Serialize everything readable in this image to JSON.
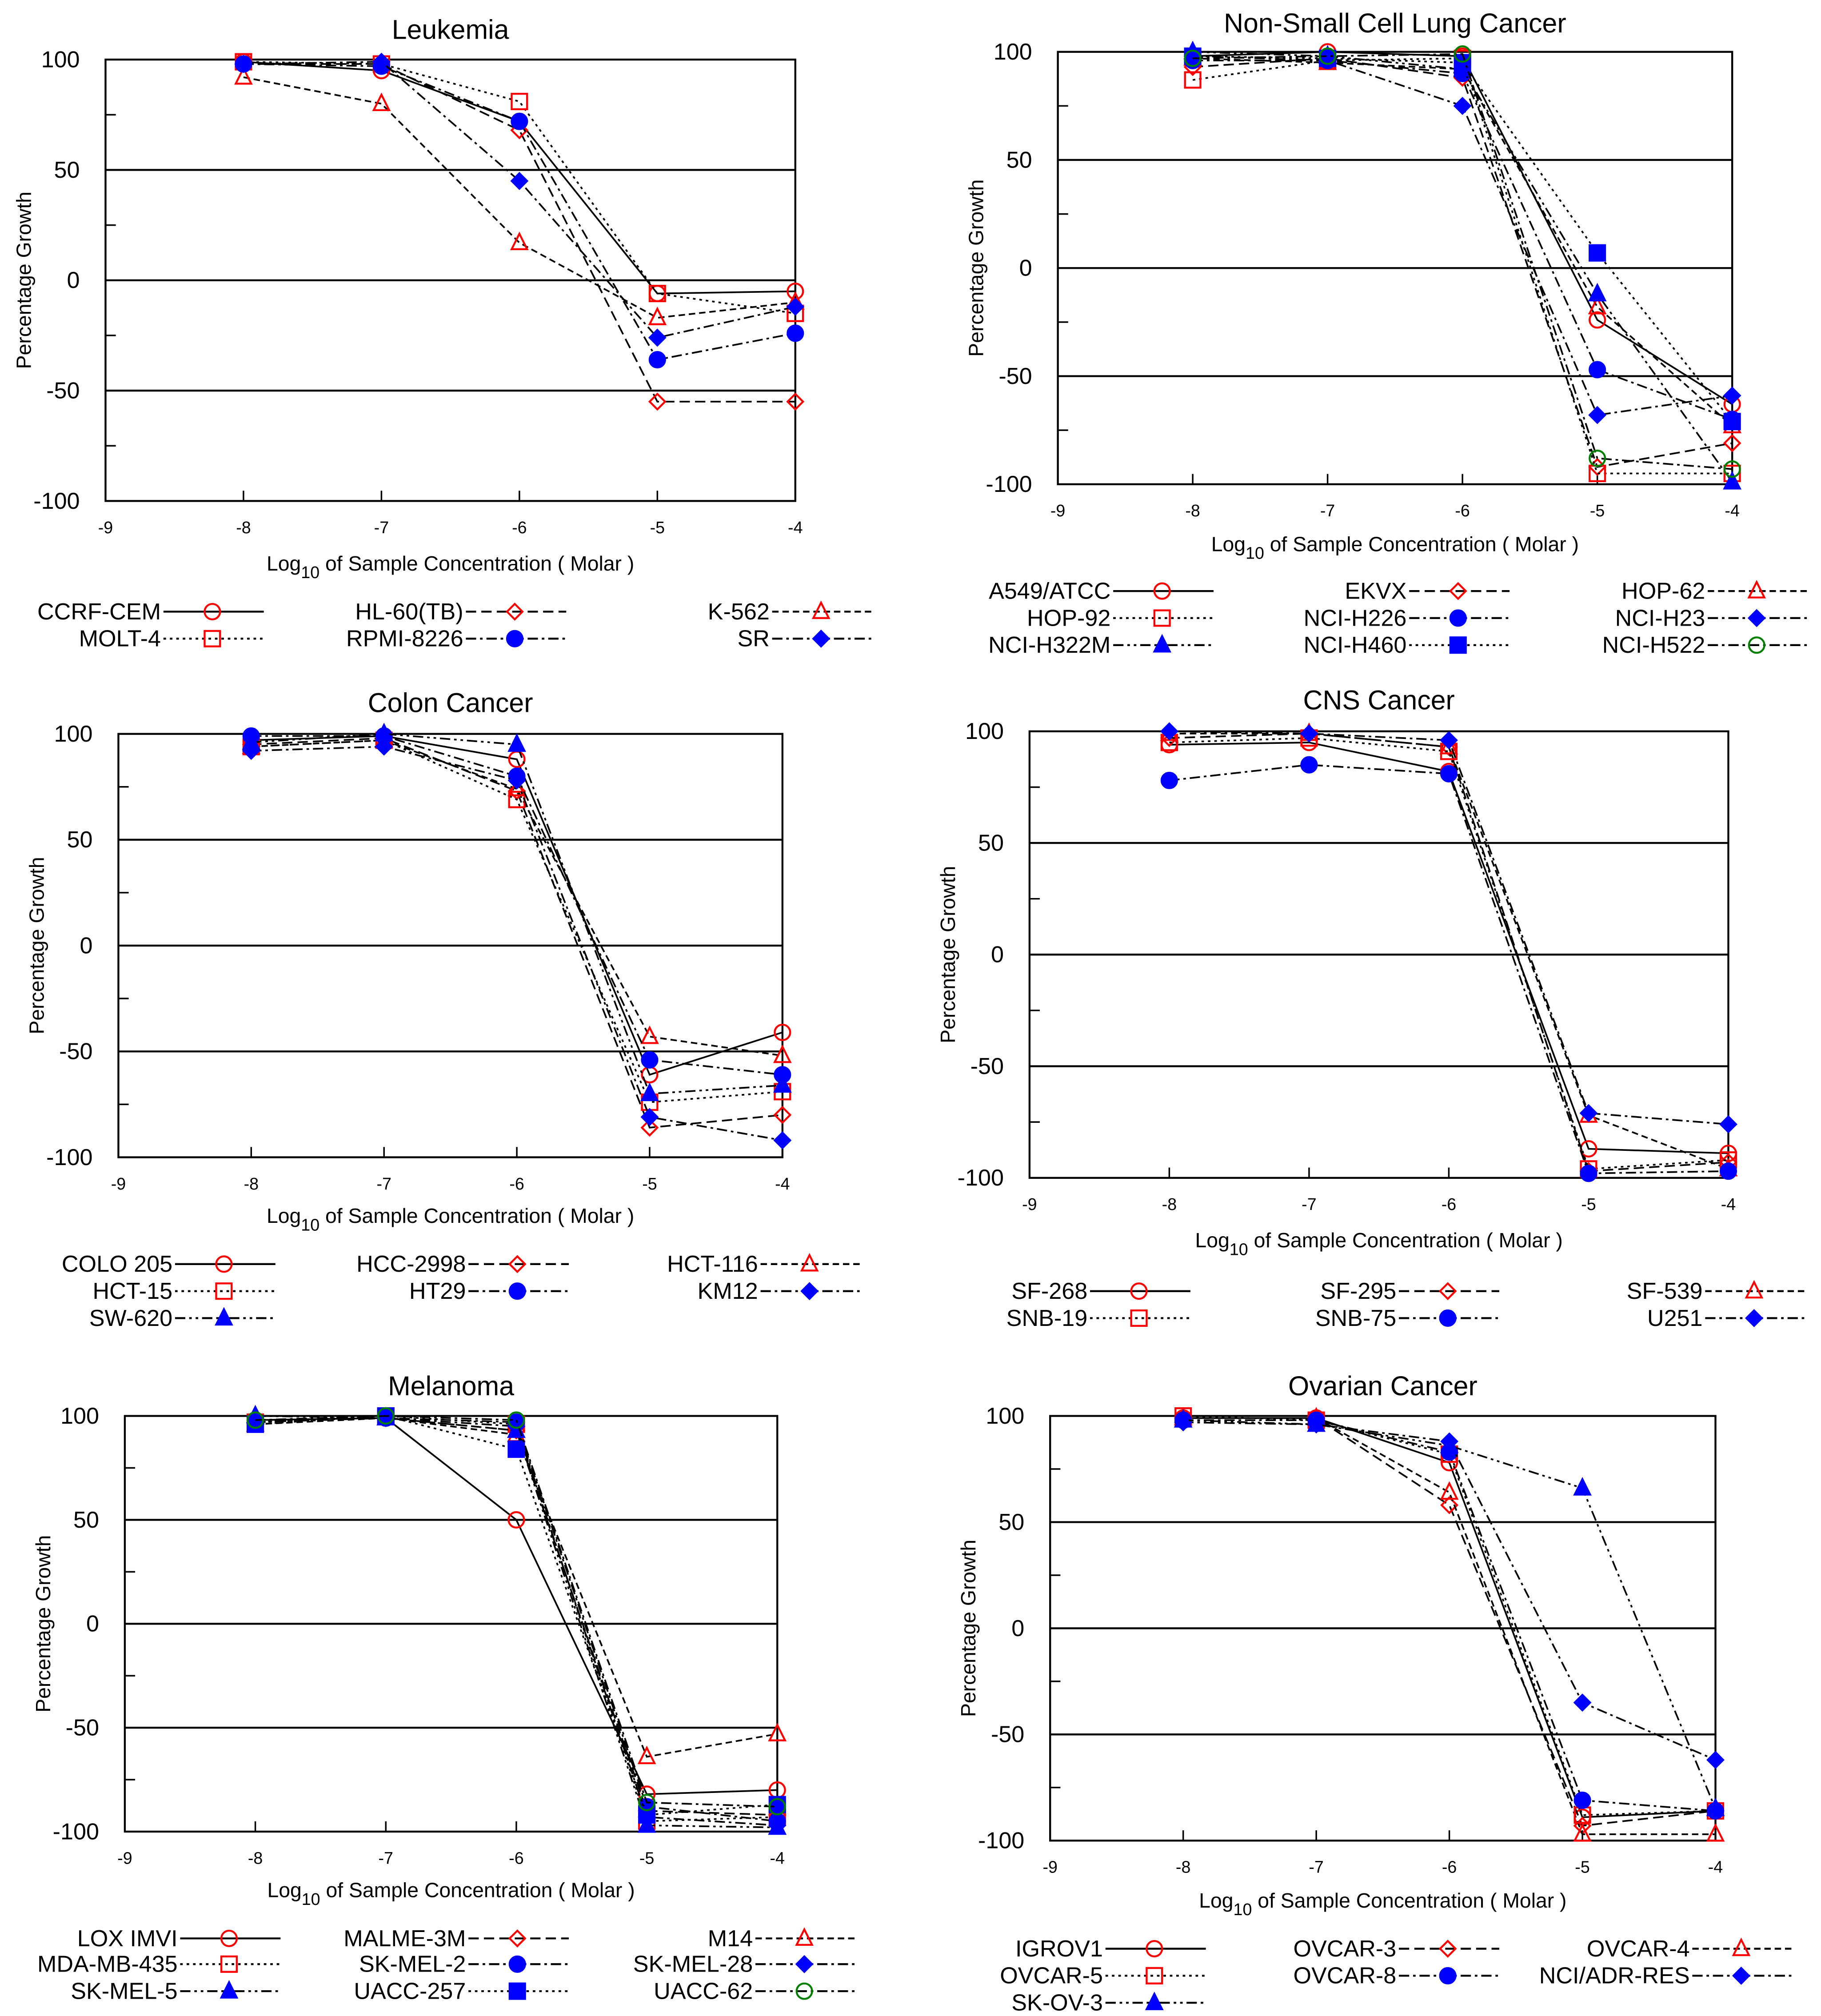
{
  "chart_data": [
    {
      "type": "line",
      "title": "Leukemia",
      "xlabel": "Log10 of Sample Concentration ( Molar )",
      "ylabel": "Percentage Growth",
      "xlim": [
        -9,
        -4
      ],
      "ylim": [
        -100,
        100
      ],
      "xticks": [
        -9,
        -8,
        -7,
        -6,
        -5,
        -4
      ],
      "yticks": [
        100,
        50,
        0,
        -50,
        -100
      ],
      "grid_lines_y": [
        50,
        0,
        -50
      ],
      "x": [
        -8,
        -7,
        -6,
        -5,
        -4
      ],
      "series": [
        {
          "name": "CCRF-CEM",
          "values": [
            99,
            95,
            72,
            -6,
            -5
          ],
          "marker": "circle-open",
          "color": "#ff0000",
          "line": "solid"
        },
        {
          "name": "HL-60(TB)",
          "values": [
            98,
            98,
            68,
            -55,
            -55
          ],
          "marker": "diamond-open",
          "color": "#ff0000",
          "line": "dashed"
        },
        {
          "name": "K-562",
          "values": [
            92,
            80,
            17,
            -17,
            -10
          ],
          "marker": "triangle-open",
          "color": "#ff0000",
          "line": "short-dash"
        },
        {
          "name": "MOLT-4",
          "values": [
            99,
            98,
            81,
            -6,
            -15
          ],
          "marker": "square-open",
          "color": "#ff0000",
          "line": "dotted"
        },
        {
          "name": "RPMI-8226",
          "values": [
            98,
            97,
            72,
            -36,
            -24
          ],
          "marker": "circle-filled",
          "color": "#0000ff",
          "line": "dash-dot"
        },
        {
          "name": "SR",
          "values": [
            98,
            99,
            45,
            -26,
            -12
          ],
          "marker": "diamond-filled",
          "color": "#0000ff",
          "line": "dash-dot"
        }
      ]
    },
    {
      "type": "line",
      "title": "Non-Small Cell Lung Cancer",
      "xlabel": "Log10 of Sample Concentration ( Molar )",
      "ylabel": "Percentage Growth",
      "xlim": [
        -9,
        -4
      ],
      "ylim": [
        -100,
        100
      ],
      "xticks": [
        -9,
        -8,
        -7,
        -6,
        -5,
        -4
      ],
      "yticks": [
        100,
        50,
        0,
        -50,
        -100
      ],
      "grid_lines_y": [
        50,
        0,
        -50
      ],
      "x": [
        -8,
        -7,
        -6,
        -5,
        -4
      ],
      "series": [
        {
          "name": "A549/ATCC",
          "values": [
            98,
            100,
            98,
            -24,
            -63
          ],
          "marker": "circle-open",
          "color": "#ff0000",
          "line": "solid"
        },
        {
          "name": "EKVX",
          "values": [
            93,
            97,
            88,
            -92,
            -81
          ],
          "marker": "diamond-open",
          "color": "#ff0000",
          "line": "dashed"
        },
        {
          "name": "HOP-62",
          "values": [
            97,
            95,
            92,
            -18,
            -73
          ],
          "marker": "triangle-open",
          "color": "#ff0000",
          "line": "short-dash"
        },
        {
          "name": "HOP-92",
          "values": [
            87,
            96,
            97,
            -95,
            -95
          ],
          "marker": "square-open",
          "color": "#ff0000",
          "line": "dotted"
        },
        {
          "name": "NCI-H226",
          "values": [
            96,
            96,
            90,
            -47,
            -70
          ],
          "marker": "circle-filled",
          "color": "#0000ff",
          "line": "dash-dot"
        },
        {
          "name": "NCI-H23",
          "values": [
            98,
            96,
            75,
            -68,
            -59
          ],
          "marker": "diamond-filled",
          "color": "#0000ff",
          "line": "dash-dot"
        },
        {
          "name": "NCI-H322M",
          "values": [
            100,
            98,
            92,
            -12,
            -99
          ],
          "marker": "triangle-filled",
          "color": "#0000ff",
          "line": "dash-dot-dot"
        },
        {
          "name": "NCI-H460",
          "values": [
            98,
            97,
            95,
            7,
            -71
          ],
          "marker": "square-filled",
          "color": "#0000ff",
          "line": "dotted"
        },
        {
          "name": "NCI-H522",
          "values": [
            97,
            98,
            99,
            -88,
            -93
          ],
          "marker": "circle-open",
          "color": "#008000",
          "line": "dash-dot"
        }
      ]
    },
    {
      "type": "line",
      "title": "Colon Cancer",
      "xlabel": "Log10 of Sample Concentration ( Molar )",
      "ylabel": "Percentage Growth",
      "xlim": [
        -9,
        -4
      ],
      "ylim": [
        -100,
        100
      ],
      "xticks": [
        -9,
        -8,
        -7,
        -6,
        -5,
        -4
      ],
      "yticks": [
        100,
        50,
        0,
        -50,
        -100
      ],
      "grid_lines_y": [
        50,
        0,
        -50
      ],
      "x": [
        -8,
        -7,
        -6,
        -5,
        -4
      ],
      "series": [
        {
          "name": "COLO 205",
          "values": [
            97,
            99,
            88,
            -61,
            -41
          ],
          "marker": "circle-open",
          "color": "#ff0000",
          "line": "solid"
        },
        {
          "name": "HCC-2998",
          "values": [
            95,
            98,
            73,
            -86,
            -80
          ],
          "marker": "diamond-open",
          "color": "#ff0000",
          "line": "dashed"
        },
        {
          "name": "HCT-116",
          "values": [
            94,
            97,
            74,
            -43,
            -52
          ],
          "marker": "triangle-open",
          "color": "#ff0000",
          "line": "short-dash"
        },
        {
          "name": "HCT-15",
          "values": [
            94,
            97,
            69,
            -74,
            -69
          ],
          "marker": "square-open",
          "color": "#ff0000",
          "line": "dotted"
        },
        {
          "name": "HT29",
          "values": [
            99,
            99,
            80,
            -54,
            -61
          ],
          "marker": "circle-filled",
          "color": "#0000ff",
          "line": "dash-dot"
        },
        {
          "name": "KM12",
          "values": [
            92,
            94,
            78,
            -81,
            -92
          ],
          "marker": "diamond-filled",
          "color": "#0000ff",
          "line": "dash-dot"
        },
        {
          "name": "SW-620",
          "values": [
            96,
            100,
            95,
            -70,
            -66
          ],
          "marker": "triangle-filled",
          "color": "#0000ff",
          "line": "dash-dot-dot"
        }
      ]
    },
    {
      "type": "line",
      "title": "CNS Cancer",
      "xlabel": "Log10 of Sample Concentration ( Molar )",
      "ylabel": "Percentage Growth",
      "xlim": [
        -9,
        -4
      ],
      "ylim": [
        -100,
        100
      ],
      "xticks": [
        -9,
        -8,
        -7,
        -6,
        -5,
        -4
      ],
      "yticks": [
        100,
        50,
        0,
        -50,
        -100
      ],
      "grid_lines_y": [
        50,
        0,
        -50
      ],
      "x": [
        -8,
        -7,
        -6,
        -5,
        -4
      ],
      "series": [
        {
          "name": "SF-268",
          "values": [
            94,
            95,
            82,
            -87,
            -89
          ],
          "marker": "circle-open",
          "color": "#ff0000",
          "line": "solid"
        },
        {
          "name": "SF-295",
          "values": [
            97,
            99,
            93,
            -97,
            -93
          ],
          "marker": "diamond-open",
          "color": "#ff0000",
          "line": "dashed"
        },
        {
          "name": "SF-539",
          "values": [
            99,
            99,
            93,
            -72,
            -96
          ],
          "marker": "triangle-open",
          "color": "#ff0000",
          "line": "short-dash"
        },
        {
          "name": "SNB-19",
          "values": [
            95,
            97,
            91,
            -96,
            -92
          ],
          "marker": "square-open",
          "color": "#ff0000",
          "line": "dotted"
        },
        {
          "name": "SNB-75",
          "values": [
            78,
            85,
            81,
            -98,
            -97
          ],
          "marker": "circle-filled",
          "color": "#0000ff",
          "line": "dash-dot"
        },
        {
          "name": "U251",
          "values": [
            100,
            99,
            96,
            -71,
            -76
          ],
          "marker": "diamond-filled",
          "color": "#0000ff",
          "line": "dash-dot"
        }
      ]
    },
    {
      "type": "line",
      "title": "Melanoma",
      "xlabel": "Log10 of Sample Concentration ( Molar )",
      "ylabel": "Percentage Growth",
      "xlim": [
        -9,
        -4
      ],
      "ylim": [
        -100,
        100
      ],
      "xticks": [
        -9,
        -8,
        -7,
        -6,
        -5,
        -4
      ],
      "yticks": [
        100,
        50,
        0,
        -50,
        -100
      ],
      "grid_lines_y": [
        50,
        0,
        -50
      ],
      "x": [
        -8,
        -7,
        -6,
        -5,
        -4
      ],
      "series": [
        {
          "name": "LOX IMVI",
          "values": [
            98,
            99,
            50,
            -82,
            -80
          ],
          "marker": "circle-open",
          "color": "#ff0000",
          "line": "solid"
        },
        {
          "name": "MALME-3M",
          "values": [
            98,
            99,
            93,
            -90,
            -92
          ],
          "marker": "diamond-open",
          "color": "#ff0000",
          "line": "dashed"
        },
        {
          "name": "M14",
          "values": [
            96,
            99,
            91,
            -64,
            -53
          ],
          "marker": "triangle-open",
          "color": "#ff0000",
          "line": "short-dash"
        },
        {
          "name": "MDA-MB-435",
          "values": [
            97,
            100,
            96,
            -95,
            -93
          ],
          "marker": "square-open",
          "color": "#ff0000",
          "line": "dotted"
        },
        {
          "name": "SK-MEL-2",
          "values": [
            98,
            99,
            97,
            -88,
            -95
          ],
          "marker": "circle-filled",
          "color": "#0000ff",
          "line": "dash-dot"
        },
        {
          "name": "SK-MEL-28",
          "values": [
            97,
            99,
            95,
            -93,
            -97
          ],
          "marker": "diamond-filled",
          "color": "#0000ff",
          "line": "dash-dot"
        },
        {
          "name": "SK-MEL-5",
          "values": [
            100,
            99,
            93,
            -97,
            -98
          ],
          "marker": "triangle-filled",
          "color": "#0000ff",
          "line": "dash-dot-dot"
        },
        {
          "name": "UACC-257",
          "values": [
            96,
            100,
            84,
            -92,
            -87
          ],
          "marker": "square-filled",
          "color": "#0000ff",
          "line": "dotted"
        },
        {
          "name": "UACC-62",
          "values": [
            98,
            100,
            98,
            -86,
            -88
          ],
          "marker": "circle-open",
          "color": "#008000",
          "line": "dash-dot"
        }
      ]
    },
    {
      "type": "line",
      "title": "Ovarian Cancer",
      "xlabel": "Log10 of Sample Concentration ( Molar )",
      "ylabel": "Percentage Growth",
      "xlim": [
        -9,
        -4
      ],
      "ylim": [
        -100,
        100
      ],
      "xticks": [
        -9,
        -8,
        -7,
        -6,
        -5,
        -4
      ],
      "yticks": [
        100,
        50,
        0,
        -50,
        -100
      ],
      "grid_lines_y": [
        50,
        0,
        -50
      ],
      "x": [
        -8,
        -7,
        -6,
        -5,
        -4
      ],
      "series": [
        {
          "name": "IGROV1",
          "values": [
            99,
            99,
            78,
            -89,
            -86
          ],
          "marker": "circle-open",
          "color": "#ff0000",
          "line": "solid"
        },
        {
          "name": "OVCAR-3",
          "values": [
            99,
            99,
            58,
            -93,
            -86
          ],
          "marker": "diamond-open",
          "color": "#ff0000",
          "line": "dashed"
        },
        {
          "name": "OVCAR-4",
          "values": [
            99,
            99,
            64,
            -97,
            -97
          ],
          "marker": "triangle-open",
          "color": "#ff0000",
          "line": "short-dash"
        },
        {
          "name": "OVCAR-5",
          "values": [
            100,
            98,
            82,
            -88,
            -86
          ],
          "marker": "square-open",
          "color": "#ff0000",
          "line": "dotted"
        },
        {
          "name": "OVCAR-8",
          "values": [
            98,
            98,
            83,
            -81,
            -86
          ],
          "marker": "circle-filled",
          "color": "#0000ff",
          "line": "dash-dot"
        },
        {
          "name": "NCI/ADR-RES",
          "values": [
            97,
            96,
            88,
            -35,
            -62
          ],
          "marker": "diamond-filled",
          "color": "#0000ff",
          "line": "dash-dot"
        },
        {
          "name": "SK-OV-3",
          "values": [
            98,
            96,
            86,
            66,
            -85
          ],
          "marker": "triangle-filled",
          "color": "#0000ff",
          "line": "dash-dot-dot"
        }
      ]
    }
  ]
}
